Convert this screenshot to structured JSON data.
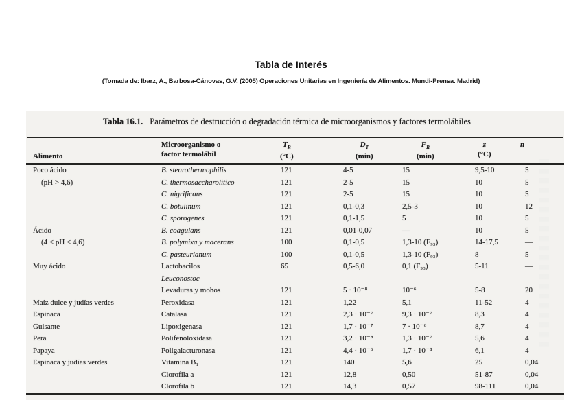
{
  "page": {
    "title": "Tabla de Interés",
    "source_line": "(Tomada de: Ibarz, A., Barbosa-Cánovas, G.V. (2005) Operaciones Unitarias en Ingeniería de Alimentos. Mundi-Prensa. Madrid)"
  },
  "colors": {
    "page_bg": "#ffffff",
    "table_bg": "#f3f2ef",
    "text": "#1f1f1f",
    "rule": "#242422"
  },
  "table": {
    "caption_label": "Tabla 16.1.",
    "caption_text": "Parámetros de destrucción o degradación térmica de microorganismos y factores termolábiles",
    "headers": [
      {
        "line1": "Alimento",
        "line2": ""
      },
      {
        "line1": "Microorganismo o",
        "line2": "factor termolábil"
      },
      {
        "symbol": "T",
        "sub": "R",
        "unit": "(°C)"
      },
      {
        "symbol": "D",
        "sub": "T",
        "unit": "(min)"
      },
      {
        "symbol": "F",
        "sub": "R",
        "unit": "(min)"
      },
      {
        "symbol": "z",
        "sub": "",
        "unit": "(°C)"
      },
      {
        "symbol": "n",
        "sub": "",
        "unit": ""
      }
    ],
    "rows": [
      {
        "alimento": "Poco ácido",
        "indent": false,
        "organismo": "B. stearothermophilis",
        "italic": true,
        "tr": "121",
        "dt": "4-5",
        "fr": "15",
        "z": "9,5-10",
        "n": "5"
      },
      {
        "alimento": "(pH > 4,6)",
        "indent": true,
        "organismo": "C. thermosaccharolitico",
        "italic": true,
        "tr": "121",
        "dt": "2-5",
        "fr": "15",
        "z": "10",
        "n": "5"
      },
      {
        "alimento": "",
        "indent": false,
        "organismo": "C. nigrificans",
        "italic": true,
        "tr": "121",
        "dt": "2-5",
        "fr": "15",
        "z": "10",
        "n": "5"
      },
      {
        "alimento": "",
        "indent": false,
        "organismo": "C. botulinum",
        "italic": true,
        "tr": "121",
        "dt": "0,1-0,3",
        "fr": "2,5-3",
        "z": "10",
        "n": "12"
      },
      {
        "alimento": "",
        "indent": false,
        "organismo": "C. sporogenes",
        "italic": true,
        "tr": "121",
        "dt": "0,1-1,5",
        "fr": "5",
        "z": "10",
        "n": "5"
      },
      {
        "alimento": "Ácido",
        "indent": false,
        "organismo": "B. coagulans",
        "italic": true,
        "tr": "121",
        "dt": "0,01-0,07",
        "fr": "—",
        "z": "10",
        "n": "5"
      },
      {
        "alimento": "(4 < pH < 4,6)",
        "indent": true,
        "organismo": "B. polymixa y macerans",
        "italic": true,
        "tr": "100",
        "dt": "0,1-0,5",
        "fr": "1,3-10 (F₉₃)",
        "z": "14-17,5",
        "n": "—"
      },
      {
        "alimento": "",
        "indent": false,
        "organismo": "C. pasteurianum",
        "italic": true,
        "tr": "100",
        "dt": "0,1-0,5",
        "fr": "1,3-10 (F₉₃)",
        "z": "8",
        "n": "5"
      },
      {
        "alimento": "Muy ácido",
        "indent": false,
        "organismo": "Lactobacilos",
        "italic": false,
        "tr": "65",
        "dt": "0,5-6,0",
        "fr": "0,1 (F₉₃)",
        "z": "5-11",
        "n": "—"
      },
      {
        "alimento": "",
        "indent": false,
        "organismo": "Leuconostoc",
        "italic": true,
        "tr": "",
        "dt": "",
        "fr": "",
        "z": "",
        "n": ""
      },
      {
        "alimento": "",
        "indent": false,
        "organismo": "Levaduras y mohos",
        "italic": false,
        "tr": "121",
        "dt": "5 · 10⁻⁸",
        "fr": "10⁻⁶",
        "z": "5-8",
        "n": "20"
      },
      {
        "alimento": "Maíz dulce y judías verdes",
        "indent": false,
        "organismo": "Peroxidasa",
        "italic": false,
        "tr": "121",
        "dt": "1,22",
        "fr": "5,1",
        "z": "11-52",
        "n": "4"
      },
      {
        "alimento": "Espinaca",
        "indent": false,
        "organismo": "Catalasa",
        "italic": false,
        "tr": "121",
        "dt": "2,3 · 10⁻⁷",
        "fr": "9,3 · 10⁻⁷",
        "z": "8,3",
        "n": "4"
      },
      {
        "alimento": "Guisante",
        "indent": false,
        "organismo": "Lipoxigenasa",
        "italic": false,
        "tr": "121",
        "dt": "1,7 · 10⁻⁷",
        "fr": "7 · 10⁻⁶",
        "z": "8,7",
        "n": "4"
      },
      {
        "alimento": "Pera",
        "indent": false,
        "organismo": "Polifenoloxidasa",
        "italic": false,
        "tr": "121",
        "dt": "3,2 · 10⁻⁸",
        "fr": "1,3 · 10⁻⁷",
        "z": "5,6",
        "n": "4"
      },
      {
        "alimento": "Papaya",
        "indent": false,
        "organismo": "Poligalacturonasa",
        "italic": false,
        "tr": "121",
        "dt": "4,4 · 10⁻⁶",
        "fr": "1,7 · 10⁻⁸",
        "z": "6,1",
        "n": "4"
      },
      {
        "alimento": "Espinaca y judías verdes",
        "indent": false,
        "organismo": "Vitamina B₁",
        "italic": false,
        "tr": "121",
        "dt": "140",
        "fr": "5,6",
        "z": "25",
        "n": "0,04"
      },
      {
        "alimento": "",
        "indent": false,
        "organismo": "Clorofila a",
        "italic": false,
        "tr": "121",
        "dt": "12,8",
        "fr": "0,50",
        "z": "51-87",
        "n": "0,04"
      },
      {
        "alimento": "",
        "indent": false,
        "organismo": "Clorofila b",
        "italic": false,
        "tr": "121",
        "dt": "14,3",
        "fr": "0,57",
        "z": "98-111",
        "n": "0,04"
      }
    ]
  }
}
